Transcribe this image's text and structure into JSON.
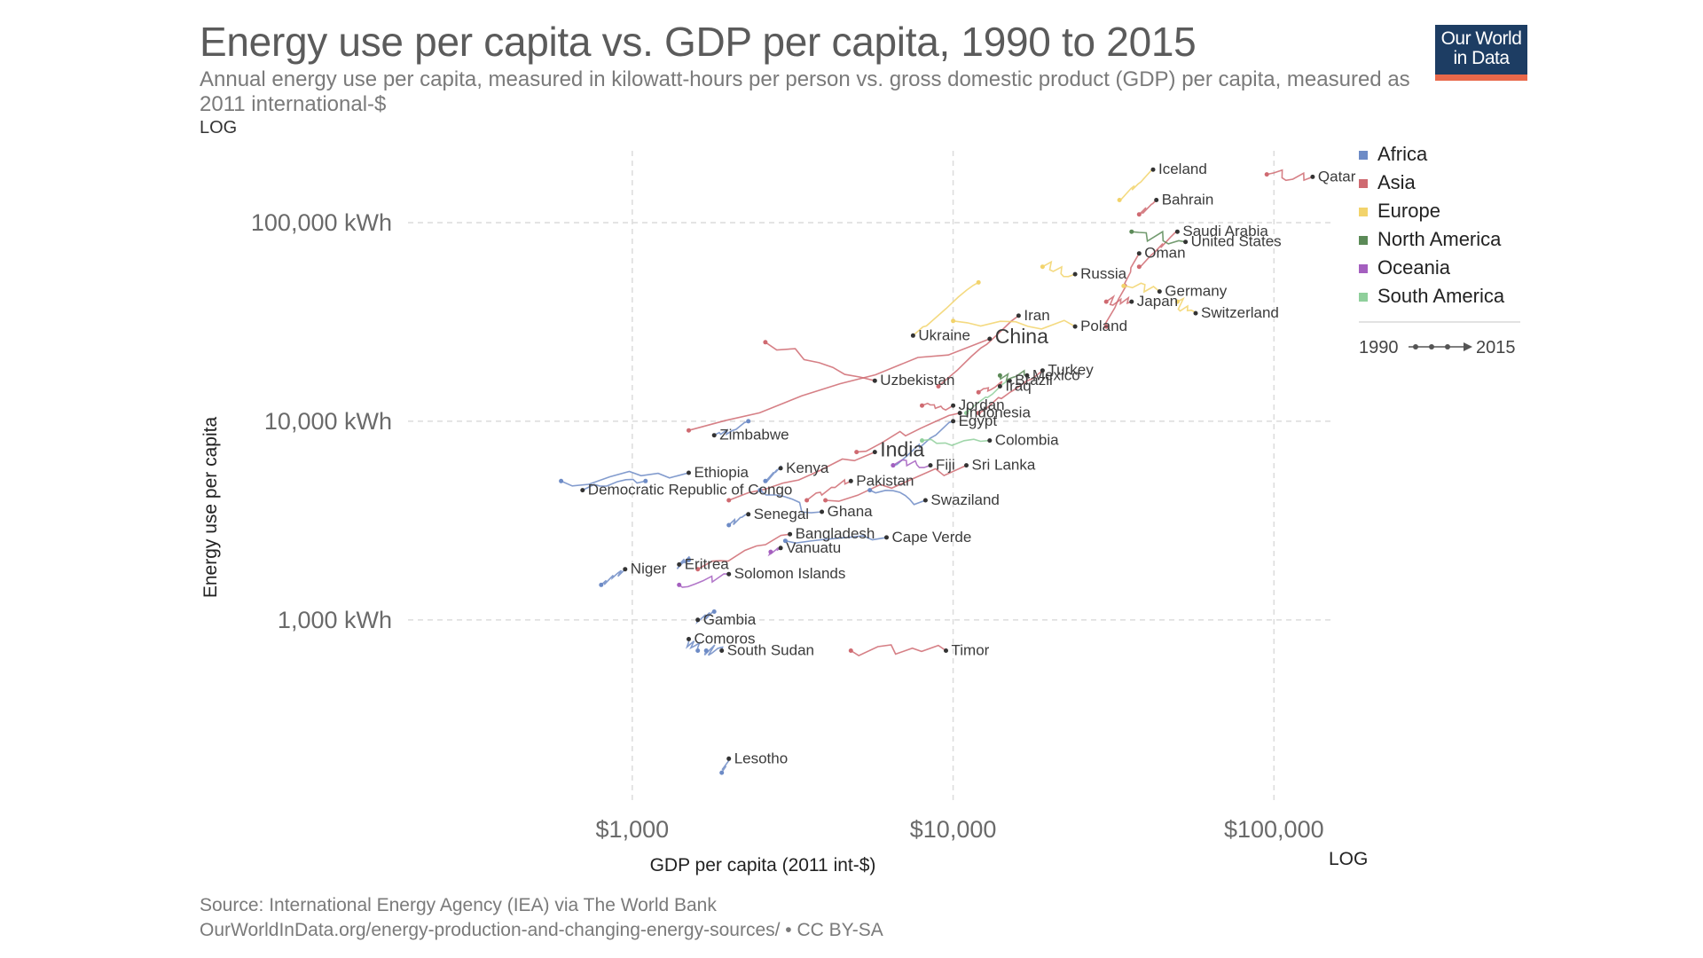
{
  "header": {
    "title": "Energy use per capita vs. GDP per capita, 1990 to 2015",
    "subtitle": "Annual energy use per capita, measured in kilowatt-hours per person vs. gross domestic product (GDP) per capita, measured as 2011 international-$",
    "y_scale_label": "LOG",
    "logo_line1": "Our World",
    "logo_line2": "in Data"
  },
  "footer": {
    "source": "Source: International Energy Agency (IEA) via The World Bank",
    "url": "OurWorldInData.org/energy-production-and-changing-energy-sources/ • CC BY-SA"
  },
  "chart_data": {
    "type": "scatter",
    "title": "Energy use per capita vs. GDP per capita, 1990 to 2015",
    "xlabel": "GDP per capita (2011 int-$)",
    "ylabel": "Energy use per capita",
    "x_scale": "log",
    "y_scale": "log",
    "x_scale_label": "LOG",
    "xlim": [
      200,
      150000
    ],
    "ylim": [
      120,
      230000
    ],
    "x_ticks": [
      {
        "value": 1000,
        "label": "$1,000"
      },
      {
        "value": 10000,
        "label": "$10,000"
      },
      {
        "value": 100000,
        "label": "$100,000"
      }
    ],
    "y_ticks": [
      {
        "value": 1000,
        "label": "1,000 kWh"
      },
      {
        "value": 10000,
        "label": "10,000 kWh"
      },
      {
        "value": 100000,
        "label": "100,000 kWh"
      }
    ],
    "grid": true,
    "legend_position": "right",
    "regions": [
      {
        "name": "Africa",
        "color": "#6d8bc6"
      },
      {
        "name": "Asia",
        "color": "#cf6a71"
      },
      {
        "name": "Europe",
        "color": "#f2d36b"
      },
      {
        "name": "North America",
        "color": "#5b8a57"
      },
      {
        "name": "Oceania",
        "color": "#a45fbf"
      },
      {
        "name": "South America",
        "color": "#8fcf9b"
      }
    ],
    "timeline": {
      "start": "1990",
      "end": "2015"
    },
    "countries": [
      {
        "name": "Qatar",
        "region": "Asia",
        "gdp_1990": 95000,
        "energy_1990": 175000,
        "gdp_2015": 132000,
        "energy_2015": 170000
      },
      {
        "name": "Iceland",
        "region": "Europe",
        "gdp_1990": 33000,
        "energy_1990": 130000,
        "gdp_2015": 42000,
        "energy_2015": 185000
      },
      {
        "name": "Bahrain",
        "region": "Asia",
        "gdp_1990": 38000,
        "energy_1990": 110000,
        "gdp_2015": 43000,
        "energy_2015": 130000
      },
      {
        "name": "Saudi Arabia",
        "region": "Asia",
        "gdp_1990": 38000,
        "energy_1990": 60000,
        "gdp_2015": 50000,
        "energy_2015": 90000
      },
      {
        "name": "United States",
        "region": "North America",
        "gdp_1990": 36000,
        "energy_1990": 90000,
        "gdp_2015": 53000,
        "energy_2015": 80000
      },
      {
        "name": "Oman",
        "region": "Asia",
        "gdp_1990": 30000,
        "energy_1990": 30000,
        "gdp_2015": 38000,
        "energy_2015": 70000
      },
      {
        "name": "Germany",
        "region": "Europe",
        "gdp_1990": 34000,
        "energy_1990": 48000,
        "gdp_2015": 44000,
        "energy_2015": 45000
      },
      {
        "name": "Russia",
        "region": "Europe",
        "gdp_1990": 19000,
        "energy_1990": 60000,
        "gdp_2015": 24000,
        "energy_2015": 55000
      },
      {
        "name": "Iran",
        "region": "Asia",
        "gdp_1990": 9000,
        "energy_1990": 15000,
        "gdp_2015": 16000,
        "energy_2015": 34000
      },
      {
        "name": "Japan",
        "region": "Asia",
        "gdp_1990": 30000,
        "energy_1990": 40000,
        "gdp_2015": 36000,
        "energy_2015": 40000
      },
      {
        "name": "Poland",
        "region": "Europe",
        "gdp_1990": 10000,
        "energy_1990": 32000,
        "gdp_2015": 24000,
        "energy_2015": 30000
      },
      {
        "name": "Switzerland",
        "region": "Europe",
        "gdp_1990": 50000,
        "energy_1990": 40000,
        "gdp_2015": 57000,
        "energy_2015": 35000
      },
      {
        "name": "China",
        "region": "Asia",
        "gdp_1990": 1500,
        "energy_1990": 9000,
        "gdp_2015": 13000,
        "energy_2015": 26000
      },
      {
        "name": "Ukraine",
        "region": "Europe",
        "gdp_1990": 12000,
        "energy_1990": 50000,
        "gdp_2015": 7500,
        "energy_2015": 27000
      },
      {
        "name": "Turkey",
        "region": "Asia",
        "gdp_1990": 12000,
        "energy_1990": 11000,
        "gdp_2015": 19000,
        "energy_2015": 18000
      },
      {
        "name": "Brazil",
        "region": "South America",
        "gdp_1990": 11000,
        "energy_1990": 11000,
        "gdp_2015": 15000,
        "energy_2015": 16000
      },
      {
        "name": "Uzbekistan",
        "region": "Asia",
        "gdp_1990": 2600,
        "energy_1990": 25000,
        "gdp_2015": 5700,
        "energy_2015": 16000
      },
      {
        "name": "Iraq",
        "region": "Asia",
        "gdp_1990": 12000,
        "energy_1990": 14000,
        "gdp_2015": 14000,
        "energy_2015": 15000
      },
      {
        "name": "Mexico",
        "region": "North America",
        "gdp_1990": 14000,
        "energy_1990": 17000,
        "gdp_2015": 17000,
        "energy_2015": 17000
      },
      {
        "name": "Jordan",
        "region": "Asia",
        "gdp_1990": 8000,
        "energy_1990": 12000,
        "gdp_2015": 10000,
        "energy_2015": 12000
      },
      {
        "name": "Indonesia",
        "region": "Asia",
        "gdp_1990": 5000,
        "energy_1990": 7000,
        "gdp_2015": 10500,
        "energy_2015": 11000
      },
      {
        "name": "India",
        "region": "Asia",
        "gdp_1990": 2000,
        "energy_1990": 4000,
        "gdp_2015": 5700,
        "energy_2015": 7000
      },
      {
        "name": "Egypt",
        "region": "Africa",
        "gdp_1990": 6500,
        "energy_1990": 6000,
        "gdp_2015": 10000,
        "energy_2015": 10000
      },
      {
        "name": "Colombia",
        "region": "South America",
        "gdp_1990": 8000,
        "energy_1990": 8000,
        "gdp_2015": 13000,
        "energy_2015": 8000
      },
      {
        "name": "Sri Lanka",
        "region": "Asia",
        "gdp_1990": 4000,
        "energy_1990": 4000,
        "gdp_2015": 11000,
        "energy_2015": 6000
      },
      {
        "name": "Zimbabwe",
        "region": "Africa",
        "gdp_1990": 2300,
        "energy_1990": 10000,
        "gdp_2015": 1800,
        "energy_2015": 8500
      },
      {
        "name": "Ethiopia",
        "region": "Africa",
        "gdp_1990": 600,
        "energy_1990": 5000,
        "gdp_2015": 1500,
        "energy_2015": 5500
      },
      {
        "name": "Kenya",
        "region": "Africa",
        "gdp_1990": 2600,
        "energy_1990": 5000,
        "gdp_2015": 2900,
        "energy_2015": 5800
      },
      {
        "name": "Fiji",
        "region": "Oceania",
        "gdp_1990": 6500,
        "energy_1990": 6000,
        "gdp_2015": 8500,
        "energy_2015": 6000
      },
      {
        "name": "Democratic Republic of Congo",
        "region": "Africa",
        "gdp_1990": 1100,
        "energy_1990": 5000,
        "gdp_2015": 700,
        "energy_2015": 4500
      },
      {
        "name": "Pakistan",
        "region": "Asia",
        "gdp_1990": 3500,
        "energy_1990": 4000,
        "gdp_2015": 4800,
        "energy_2015": 5000
      },
      {
        "name": "Swaziland",
        "region": "Africa",
        "gdp_1990": 5500,
        "energy_1990": 4500,
        "gdp_2015": 8200,
        "energy_2015": 4000
      },
      {
        "name": "Senegal",
        "region": "Africa",
        "gdp_1990": 2000,
        "energy_1990": 3000,
        "gdp_2015": 2300,
        "energy_2015": 3400
      },
      {
        "name": "Ghana",
        "region": "Africa",
        "gdp_1990": 2500,
        "energy_1990": 4500,
        "gdp_2015": 3900,
        "energy_2015": 3500
      },
      {
        "name": "Bangladesh",
        "region": "Asia",
        "gdp_1990": 1600,
        "energy_1990": 1800,
        "gdp_2015": 3100,
        "energy_2015": 2700
      },
      {
        "name": "Cape Verde",
        "region": "Africa",
        "gdp_1990": 3000,
        "energy_1990": 2500,
        "gdp_2015": 6200,
        "energy_2015": 2600
      },
      {
        "name": "Eritrea",
        "region": "Africa",
        "gdp_1990": 1500,
        "energy_1990": 2000,
        "gdp_2015": 1400,
        "energy_2015": 1900
      },
      {
        "name": "Vanuatu",
        "region": "Oceania",
        "gdp_1990": 2700,
        "energy_1990": 2200,
        "gdp_2015": 2900,
        "energy_2015": 2300
      },
      {
        "name": "Niger",
        "region": "Africa",
        "gdp_1990": 800,
        "energy_1990": 1500,
        "gdp_2015": 950,
        "energy_2015": 1800
      },
      {
        "name": "Solomon Islands",
        "region": "Oceania",
        "gdp_1990": 1400,
        "energy_1990": 1500,
        "gdp_2015": 2000,
        "energy_2015": 1700
      },
      {
        "name": "Gambia",
        "region": "Africa",
        "gdp_1990": 1800,
        "energy_1990": 1100,
        "gdp_2015": 1600,
        "energy_2015": 1000
      },
      {
        "name": "South Sudan",
        "region": "Africa",
        "gdp_1990": 1700,
        "energy_1990": 700,
        "gdp_2015": 1900,
        "energy_2015": 700
      },
      {
        "name": "Comoros",
        "region": "Africa",
        "gdp_1990": 1600,
        "energy_1990": 700,
        "gdp_2015": 1500,
        "energy_2015": 800
      },
      {
        "name": "Timor",
        "region": "Asia",
        "gdp_1990": 4800,
        "energy_1990": 700,
        "gdp_2015": 9500,
        "energy_2015": 700
      },
      {
        "name": "Lesotho",
        "region": "Africa",
        "gdp_1990": 1900,
        "energy_1990": 170,
        "gdp_2015": 2000,
        "energy_2015": 200
      }
    ]
  }
}
